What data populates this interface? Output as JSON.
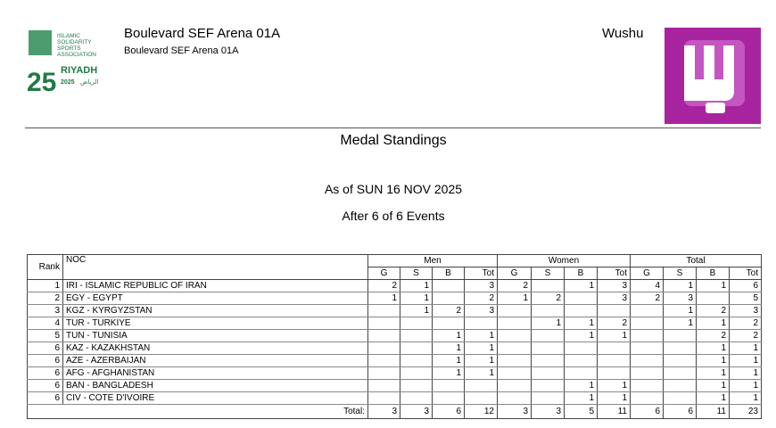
{
  "logo": {
    "org": [
      "ISLAMIC",
      "SOLIDARITY",
      "SPORTS",
      "ASSOCIATION"
    ],
    "numeral": "25",
    "city": "RIYADH",
    "year": "2025",
    "arabic": "الرياض"
  },
  "header": {
    "venue": "Boulevard SEF Arena 01A",
    "subvenue": "Boulevard SEF Arena 01A",
    "sport": "Wushu"
  },
  "title": "Medal Standings",
  "date": "As of SUN 16 NOV 2025",
  "events": "After 6 of 6 Events",
  "table": {
    "columns": {
      "rank": "Rank",
      "noc": "NOC",
      "groups": [
        "Men",
        "Women",
        "Total"
      ],
      "medals": [
        "G",
        "S",
        "B",
        "Tot"
      ]
    },
    "rows": [
      {
        "rank": 1,
        "noc": "IRI - ISLAMIC REPUBLIC OF IRAN",
        "men": [
          2,
          1,
          null,
          3
        ],
        "women": [
          2,
          null,
          1,
          3
        ],
        "total": [
          4,
          1,
          1,
          6
        ]
      },
      {
        "rank": 2,
        "noc": "EGY - EGYPT",
        "men": [
          1,
          1,
          null,
          2
        ],
        "women": [
          1,
          2,
          null,
          3
        ],
        "total": [
          2,
          3,
          null,
          5
        ]
      },
      {
        "rank": 3,
        "noc": "KGZ - KYRGYZSTAN",
        "men": [
          null,
          1,
          2,
          3
        ],
        "women": [
          null,
          null,
          null,
          null
        ],
        "total": [
          null,
          1,
          2,
          3
        ]
      },
      {
        "rank": 4,
        "noc": "TUR - TURKIYE",
        "men": [
          null,
          null,
          null,
          null
        ],
        "women": [
          null,
          1,
          1,
          2
        ],
        "total": [
          null,
          1,
          1,
          2
        ]
      },
      {
        "rank": 5,
        "noc": "TUN - TUNISIA",
        "men": [
          null,
          null,
          1,
          1
        ],
        "women": [
          null,
          null,
          1,
          1
        ],
        "total": [
          null,
          null,
          2,
          2
        ]
      },
      {
        "rank": 6,
        "noc": "KAZ - KAZAKHSTAN",
        "men": [
          null,
          null,
          1,
          1
        ],
        "women": [
          null,
          null,
          null,
          null
        ],
        "total": [
          null,
          null,
          1,
          1
        ]
      },
      {
        "rank": 6,
        "noc": "AZE - AZERBAIJAN",
        "men": [
          null,
          null,
          1,
          1
        ],
        "women": [
          null,
          null,
          null,
          null
        ],
        "total": [
          null,
          null,
          1,
          1
        ]
      },
      {
        "rank": 6,
        "noc": "AFG - AFGHANISTAN",
        "men": [
          null,
          null,
          1,
          1
        ],
        "women": [
          null,
          null,
          null,
          null
        ],
        "total": [
          null,
          null,
          1,
          1
        ]
      },
      {
        "rank": 6,
        "noc": "BAN - BANGLADESH",
        "men": [
          null,
          null,
          null,
          null
        ],
        "women": [
          null,
          null,
          1,
          1
        ],
        "total": [
          null,
          null,
          1,
          1
        ]
      },
      {
        "rank": 6,
        "noc": "CIV - COTE D'IVOIRE",
        "men": [
          null,
          null,
          null,
          null
        ],
        "women": [
          null,
          null,
          1,
          1
        ],
        "total": [
          null,
          null,
          1,
          1
        ]
      }
    ],
    "total_label": "Total:",
    "totals": [
      3,
      3,
      6,
      12,
      3,
      3,
      5,
      11,
      6,
      6,
      11,
      23
    ]
  }
}
